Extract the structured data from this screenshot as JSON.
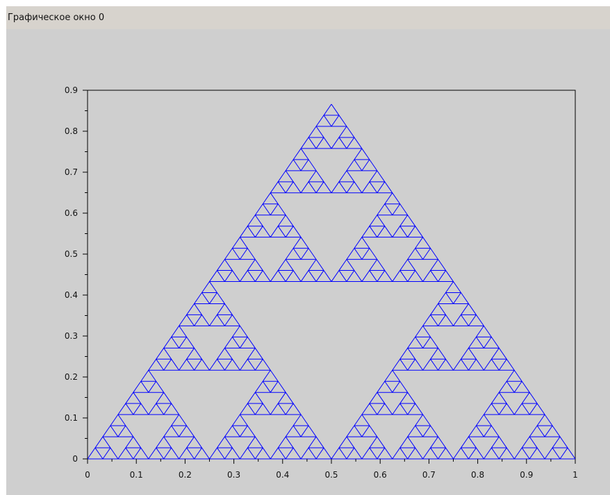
{
  "window": {
    "title": "Графическое окно 0"
  },
  "colors": {
    "background": "#cfcfcf",
    "titlebar": "#d7d3cd",
    "plot_background": "#cfcfcf",
    "series": "#0000ff",
    "axis": "#000000"
  },
  "chart_data": {
    "type": "line",
    "title": "",
    "xlabel": "",
    "ylabel": "",
    "xlim": [
      0,
      1
    ],
    "ylim": [
      0,
      0.9
    ],
    "grid": false,
    "legend": "none",
    "x_ticks": [
      "0",
      "0.1",
      "0.2",
      "0.3",
      "0.4",
      "0.5",
      "0.6",
      "0.7",
      "0.8",
      "0.9",
      "1"
    ],
    "y_ticks": [
      "0",
      "0.1",
      "0.2",
      "0.3",
      "0.4",
      "0.5",
      "0.6",
      "0.7",
      "0.8",
      "0.9"
    ],
    "series": [
      {
        "shape": "sierpinski-triangle",
        "vertices": [
          [
            0,
            0
          ],
          [
            1,
            0
          ],
          [
            0.5,
            0.866
          ]
        ],
        "recursion_depth": 5
      }
    ]
  }
}
